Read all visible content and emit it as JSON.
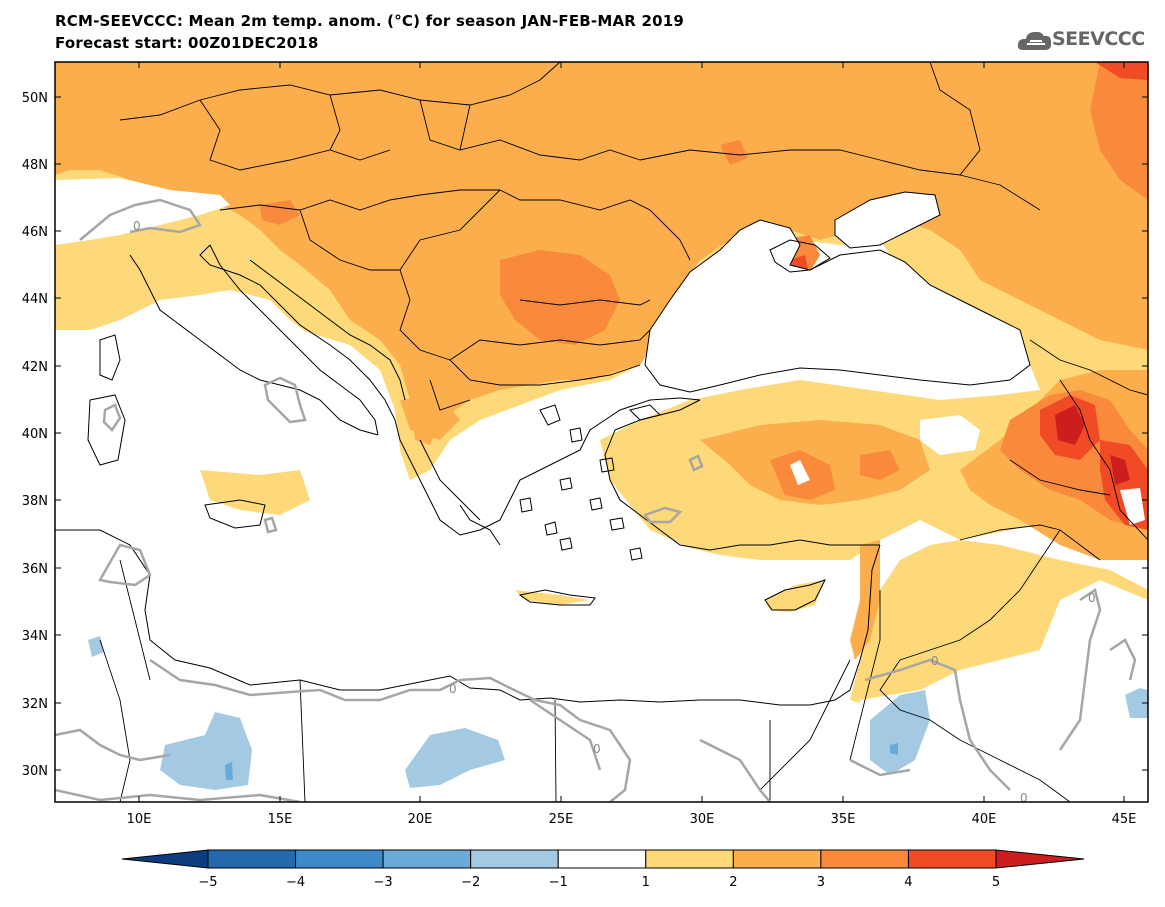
{
  "header": {
    "title": "RCM-SEEVCCC: Mean 2m temp. anom. (°C) for season JAN-FEB-MAR 2019",
    "subtitle": "Forecast start: 00Z01DEC2018",
    "logo_text": "SEEVCCC"
  },
  "map": {
    "lat_labels": [
      "50N",
      "48N",
      "46N",
      "44N",
      "42N",
      "40N",
      "38N",
      "36N",
      "34N",
      "32N",
      "30N"
    ],
    "lon_labels": [
      "10E",
      "15E",
      "20E",
      "25E",
      "30E",
      "35E",
      "40E",
      "45E"
    ],
    "contour_labels": [
      "0",
      "0",
      "0",
      "0",
      "0",
      "0"
    ]
  },
  "colorbar": {
    "labels": [
      "−5",
      "−4",
      "−3",
      "−2",
      "−1",
      "1",
      "2",
      "3",
      "4",
      "5"
    ],
    "colors": [
      "#0b3c7d",
      "#2469ad",
      "#3e8ac8",
      "#6aaad9",
      "#a4cae3",
      "#ffffff",
      "#fed979",
      "#fbae4b",
      "#f98a3c",
      "#f04b25",
      "#cd1e1e"
    ]
  }
}
